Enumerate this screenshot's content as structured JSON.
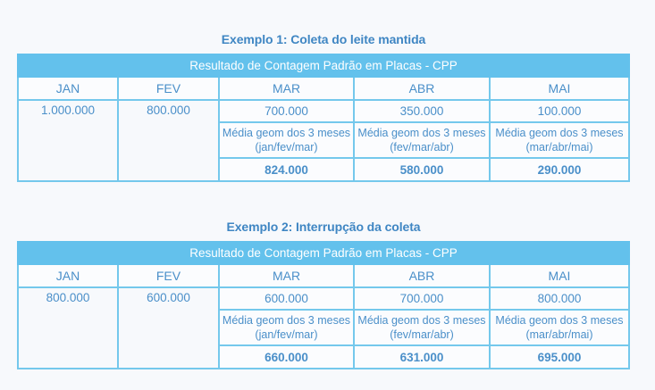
{
  "examples": [
    {
      "title": "Exemplo 1: Coleta do leite mantida",
      "band": "Resultado de Contagem Padrão em Placas - CPP",
      "months": [
        "JAN",
        "FEV",
        "MAR",
        "ABR",
        "MAI"
      ],
      "values": [
        "1.000.000",
        "800.000",
        "700.000",
        "350.000",
        "100.000"
      ],
      "mean_labels": [
        "Média geom dos 3 meses (jan/fev/mar)",
        "Média geom dos 3 meses (fev/mar/abr)",
        "Média geom dos 3 meses (mar/abr/mai)"
      ],
      "means": [
        "824.000",
        "580.000",
        "290.000"
      ]
    },
    {
      "title": "Exemplo 2: Interrupção da coleta",
      "band": "Resultado de Contagem Padrão em Placas - CPP",
      "months": [
        "JAN",
        "FEV",
        "MAR",
        "ABR",
        "MAI"
      ],
      "values": [
        "800.000",
        "600.000",
        "600.000",
        "700.000",
        "800.000"
      ],
      "mean_labels": [
        "Média geom dos 3 meses (jan/fev/mar)",
        "Média geom dos 3 meses (fev/mar/abr)",
        "Média geom dos 3 meses (mar/abr/mai)"
      ],
      "means": [
        "660.000",
        "631.000",
        "695.000"
      ]
    }
  ],
  "colors": {
    "header_band": "#63c1ec",
    "border": "#74c8ec",
    "text": "#4a8fc9",
    "title": "#3f86c3"
  }
}
